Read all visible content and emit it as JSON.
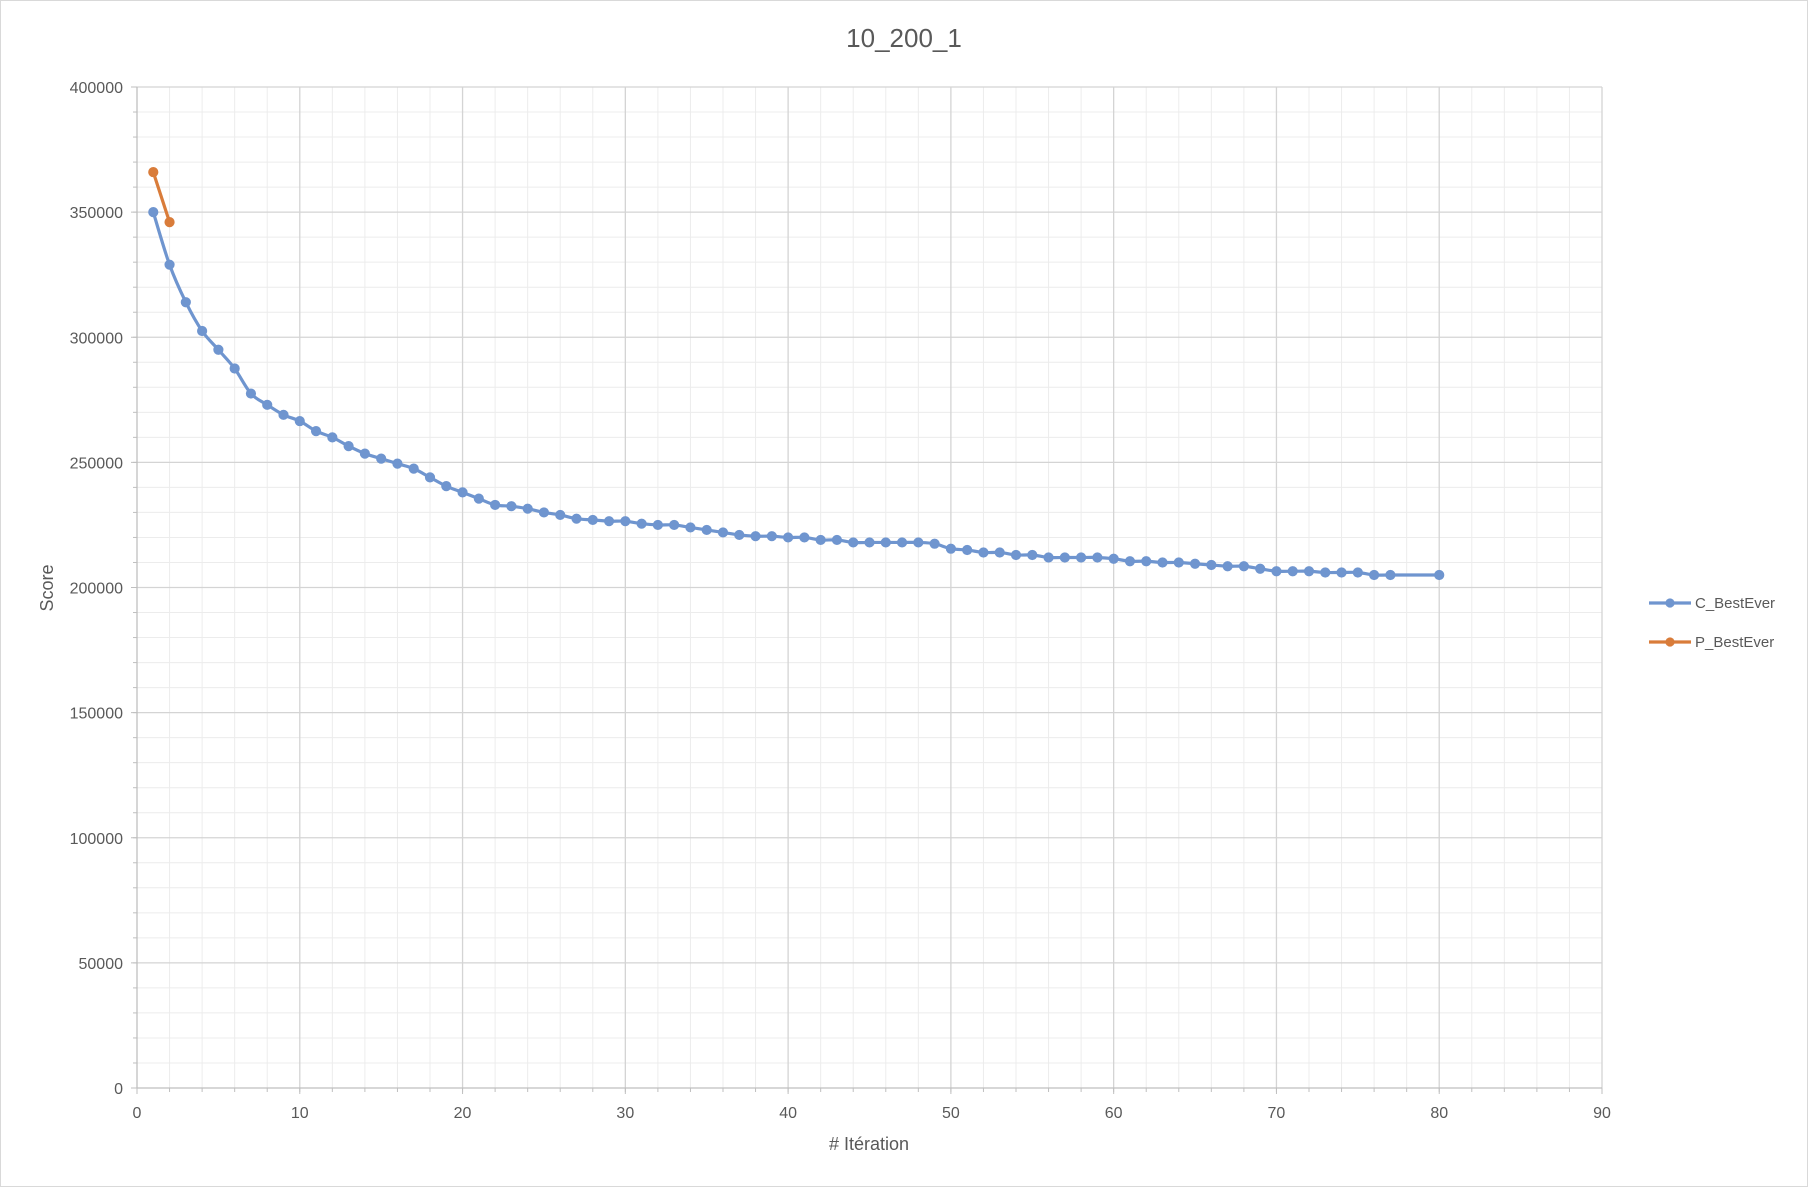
{
  "chart_data": {
    "type": "line",
    "title": "10_200_1",
    "xlabel": "# Itération",
    "ylabel": "Score",
    "xlim": [
      0,
      90
    ],
    "ylim": [
      0,
      400000
    ],
    "x_ticks": [
      "0",
      "10",
      "20",
      "30",
      "40",
      "50",
      "60",
      "70",
      "80",
      "90"
    ],
    "y_ticks": [
      "0",
      "50000",
      "100000",
      "150000",
      "200000",
      "250000",
      "300000",
      "350000",
      "400000"
    ],
    "x_minor_step": 2,
    "y_minor_step": 10000,
    "grid": true,
    "legend_position": "right",
    "series": [
      {
        "name": "C_BestEver",
        "color": "#6f95cf",
        "marker": "circle",
        "x": [
          1,
          2,
          3,
          4,
          5,
          6,
          7,
          8,
          9,
          10,
          11,
          12,
          13,
          14,
          15,
          16,
          17,
          18,
          19,
          20,
          21,
          22,
          23,
          24,
          25,
          26,
          27,
          28,
          29,
          30,
          31,
          32,
          33,
          34,
          35,
          36,
          37,
          38,
          39,
          40,
          41,
          42,
          43,
          44,
          45,
          46,
          47,
          48,
          49,
          50,
          51,
          52,
          53,
          54,
          55,
          56,
          57,
          58,
          59,
          60,
          61,
          62,
          63,
          64,
          65,
          66,
          67,
          68,
          69,
          70,
          71,
          72,
          73,
          74,
          75,
          76,
          77,
          80
        ],
        "y": [
          350000,
          329000,
          314000,
          302500,
          295000,
          287500,
          277500,
          273000,
          269000,
          266500,
          262500,
          260000,
          256500,
          253500,
          251500,
          249500,
          247500,
          244000,
          240500,
          238000,
          235500,
          233000,
          232500,
          231500,
          230000,
          229000,
          227500,
          227000,
          226500,
          226500,
          225500,
          225000,
          225000,
          224000,
          223000,
          222000,
          221000,
          220500,
          220500,
          220000,
          220000,
          219000,
          219000,
          218000,
          218000,
          218000,
          218000,
          218000,
          217500,
          215500,
          215000,
          214000,
          214000,
          213000,
          213000,
          212000,
          212000,
          212000,
          212000,
          211500,
          210500,
          210500,
          210000,
          210000,
          209500,
          209000,
          208500,
          208500,
          207500,
          206500,
          206500,
          206500,
          206000,
          206000,
          206000,
          205000,
          205000,
          205000
        ]
      },
      {
        "name": "P_BestEver",
        "color": "#d97c3a",
        "marker": "circle",
        "x": [
          1,
          2
        ],
        "y": [
          366000,
          346000
        ]
      }
    ]
  }
}
